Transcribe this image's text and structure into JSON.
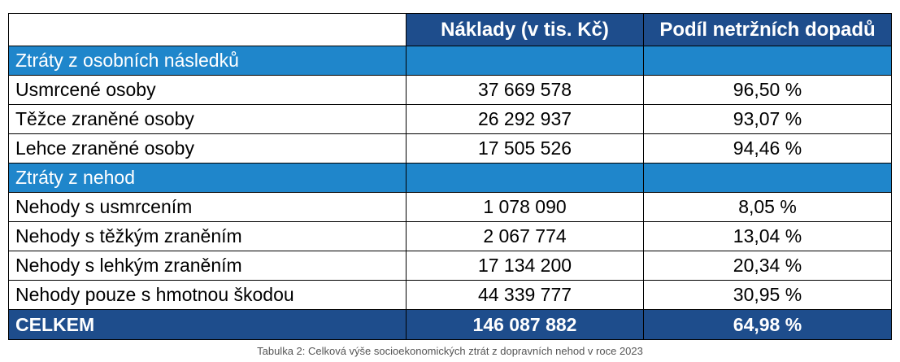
{
  "table": {
    "headers": [
      "",
      "Náklady (v tis. Kč)",
      "Podíl netržních dopadů"
    ],
    "sections": [
      {
        "title": "Ztráty z osobních následků",
        "rows": [
          {
            "label": "Usmrcené osoby",
            "cost": "37 669 578",
            "share": "96,50 %"
          },
          {
            "label": "Těžce zraněné osoby",
            "cost": "26 292 937",
            "share": "93,07 %"
          },
          {
            "label": "Lehce zraněné osoby",
            "cost": "17 505 526",
            "share": "94,46 %"
          }
        ]
      },
      {
        "title": "Ztráty z nehod",
        "rows": [
          {
            "label": "Nehody s usmrcením",
            "cost": "1 078 090",
            "share": "8,05 %"
          },
          {
            "label": "Nehody s těžkým zraněním",
            "cost": "2 067 774",
            "share": "13,04 %"
          },
          {
            "label": "Nehody s lehkým zraněním",
            "cost": "17 134 200",
            "share": "20,34 %"
          },
          {
            "label": "Nehody pouze s hmotnou škodou",
            "cost": "44 339 777",
            "share": "30,95 %"
          }
        ]
      }
    ],
    "total": {
      "label": "CELKEM",
      "cost": "146 087 882",
      "share": "64,98 %"
    }
  },
  "caption": "Tabulka 2: Celková výše socioekonomických ztrát z dopravních nehod v roce 2023",
  "colors": {
    "header_bg": "#1e4d8c",
    "section_bg": "#1f86cb",
    "total_bg": "#1e4d8c"
  }
}
